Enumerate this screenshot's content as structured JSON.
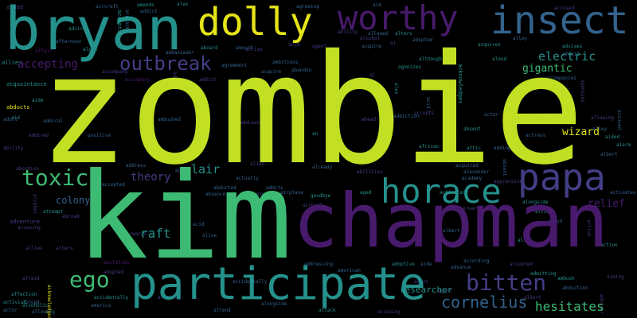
{
  "colors": {
    "background": "#000000",
    "lime": "#c2df23",
    "green": "#3dbb74",
    "teal": "#25918c",
    "blue": "#33638d",
    "indigo": "#433e85",
    "purple": "#481a6c",
    "yellow": "#e4e419"
  },
  "words": {
    "zombie": "zombie",
    "kim": "kim",
    "chapman": "chapman",
    "bryan": "bryan",
    "participate": "participate",
    "insect": "insect",
    "worthy": "worthy",
    "dolly": "dolly",
    "papa": "papa",
    "horace": "horace",
    "outbreak": "outbreak",
    "toxic": "toxic",
    "bitten": "bitten",
    "ego": "ego",
    "cornelius": "cornelius",
    "hesitates": "hesitates",
    "electric": "electric",
    "gigantic": "gigantic",
    "accepting": "accepting",
    "theory": "theory",
    "lair": "lair",
    "raft": "raft",
    "colony": "colony",
    "wizard": "wizard",
    "relief": "relief",
    "researcher": "researcher",
    "according": "according",
    "accompanies": "accompanies",
    "acquires": "acquires",
    "abducts": "abducts",
    "acquaintance": "acquaintance",
    "ambitious": "ambitious",
    "advice": "advice",
    "aircraft": "aircraft",
    "positive": "positive",
    "ambushed": "ambushed",
    "american": "american",
    "adoptive": "adoptive",
    "accidentally": "accidentally",
    "activated": "activated",
    "acquired": "acquired",
    "abduction": "abduction",
    "admiral": "admiral",
    "alive": "alive",
    "actually": "actually",
    "absence": "absence",
    "abducted": "abducted",
    "abandoning": "abandoning",
    "goodbye": "goodbye",
    "airplane": "airplane",
    "adopted": "adopted",
    "although": "although",
    "agonizes": "agonizes",
    "abilities": "abilities",
    "abortion": "abortion",
    "addiction": "addiction",
    "aggressive": "aggressive",
    "alexander": "alexander",
    "academy": "academy",
    "attic": "attic",
    "african": "african",
    "actress": "actress",
    "accepted": "accepted",
    "already": "already",
    "address": "address",
    "aging": "aging",
    "activate": "activate",
    "admits": "admits",
    "aged": "aged",
    "alarm": "alarm",
    "alien": "alien",
    "activates": "activates",
    "action": "action",
    "active": "active",
    "advance": "advance",
    "abroad": "abroad",
    "activist": "activist",
    "alcoholic": "alcoholic",
    "affection": "affection",
    "america": "america",
    "attack": "attack",
    "afterwards": "afterwards",
    "ambush": "ambush",
    "admitting": "admitting",
    "adventure": "adventure",
    "addict": "addict",
    "agreement": "agreement",
    "acquire": "acquire",
    "abandon": "abandon",
    "ahead": "ahead",
    "acclaim": "acclaim",
    "amends": "amends",
    "accepts": "accepts",
    "ability": "ability",
    "alpha": "alpha",
    "afternoon": "afternoon",
    "agreeing": "agreeing",
    "aided": "aided",
    "alex": "alex",
    "accused": "accused",
    "alters": "alters",
    "acquisition": "acquisition",
    "airport": "airport",
    "allies": "allies",
    "ai": "ai",
    "aid": "aid",
    "affair": "affair",
    "alley": "alley",
    "aide": "aide",
    "an": "an",
    "advisor": "advisor",
    "attempt": "attempt",
    "acknowledges": "acknowledges",
    "admired": "admired",
    "adult": "adult",
    "accompany": "accompany",
    "ambassador": "ambassador",
    "aboard": "aboard",
    "amount": "amount",
    "allowing": "allowing",
    "allowed": "allowed",
    "aiming": "aiming",
    "aloud": "aloud",
    "adding": "adding",
    "alcohol": "alcohol",
    "albert": "albert",
    "advises": "advises",
    "afraid": "afraid",
    "aged2": "aged",
    "accusing": "accusing",
    "alongside": "alongside",
    "attend": "attend",
    "admission": "admission",
    "actor": "actor",
    "acid": "acid",
    "addressing": "addressing",
    "agent": "agent",
    "absent": "absent",
    "aiming2": "aiming"
  }
}
